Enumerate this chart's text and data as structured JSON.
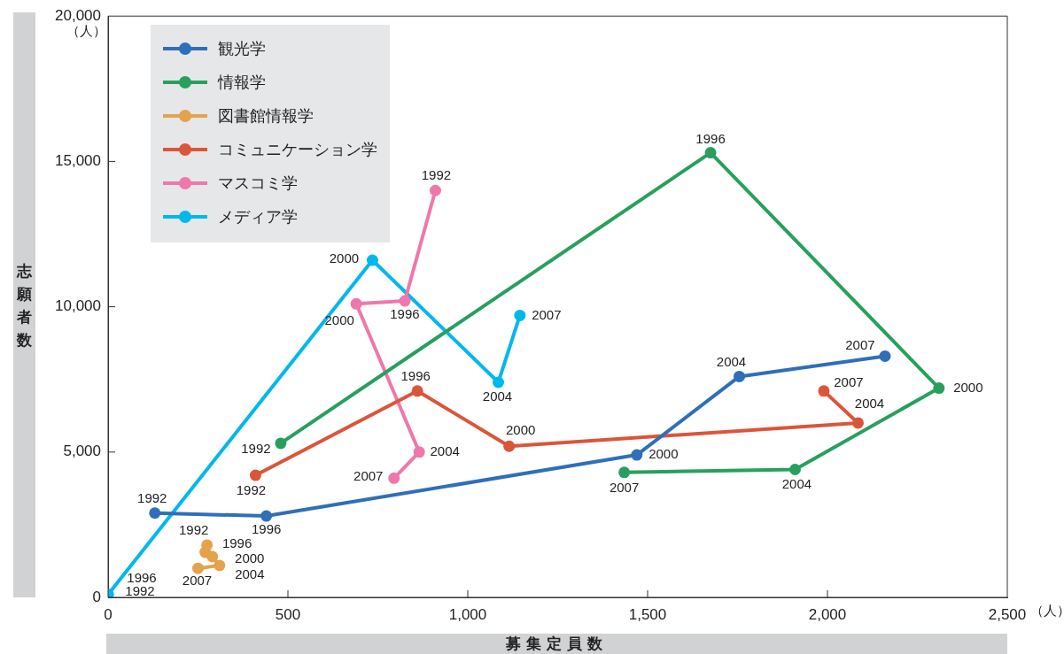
{
  "chart_data": {
    "type": "line",
    "xlabel": "募集定員数",
    "ylabel": "志願者数",
    "marker": "circle",
    "line_style": "solid",
    "legend": "top left",
    "xlim": [
      0,
      2500
    ],
    "ylim": [
      0,
      20000
    ],
    "xticks": [
      0,
      500,
      {
        "value": 1000,
        "label": "1,000"
      },
      {
        "value": 1500,
        "label": "1,500"
      },
      {
        "value": 2000,
        "label": "2,000"
      },
      {
        "value": 2500,
        "label": "2,500"
      }
    ],
    "yticks": [
      0,
      {
        "value": 5000,
        "label": "5,000"
      },
      {
        "value": 10000,
        "label": "10,000"
      },
      {
        "value": 15000,
        "label": "15,000"
      },
      {
        "value": 20000,
        "label": "20,000"
      }
    ],
    "series": [
      {
        "name": "観光学",
        "color": "#2f6fb9",
        "x": [
          130,
          440,
          1470,
          1755,
          2160
        ],
        "values": [
          2900,
          2800,
          4900,
          7600,
          8300
        ]
      },
      {
        "name": "情報学",
        "color": "#27a05e",
        "x": [
          480,
          1675,
          2310,
          1910,
          1435
        ],
        "values": [
          5300,
          15300,
          7200,
          4400,
          4300
        ]
      },
      {
        "name": "図書館情報学",
        "color": "#e5a24c",
        "x": [
          275,
          270,
          290,
          310,
          250
        ],
        "values": [
          1800,
          1550,
          1400,
          1100,
          1000
        ]
      },
      {
        "name": "コミュニケーション学",
        "color": "#db5539",
        "x": [
          410,
          860,
          1115,
          2085,
          1990
        ],
        "values": [
          4200,
          7100,
          5200,
          6000,
          7100
        ]
      },
      {
        "name": "マスコミ学",
        "color": "#ee78ab",
        "x": [
          910,
          825,
          690,
          865,
          795
        ],
        "values": [
          14000,
          10200,
          10100,
          5000,
          4100
        ]
      },
      {
        "name": "メディア学",
        "color": "#00b8ec",
        "x": [
          0,
          0,
          735,
          1085,
          1145
        ],
        "values": [
          100,
          100,
          11600,
          7400,
          9700
        ]
      }
    ],
    "annotations": [
      "（人）",
      "（人）",
      {
        "text": "1992",
        "x": 130,
        "y": 2900
      },
      {
        "text": "1996",
        "x": 440,
        "y": 2800
      },
      {
        "text": "2000",
        "x": 1470,
        "y": 4900
      },
      {
        "text": "2004",
        "x": 1755,
        "y": 7600
      },
      {
        "text": "2007",
        "x": 2160,
        "y": 8300
      },
      {
        "text": "1992",
        "x": 480,
        "y": 5300
      },
      {
        "text": "1996",
        "x": 1675,
        "y": 15300
      },
      {
        "text": "2000",
        "x": 2310,
        "y": 7200
      },
      {
        "text": "2004",
        "x": 1910,
        "y": 4400
      },
      {
        "text": "2007",
        "x": 1435,
        "y": 4300
      },
      {
        "text": "1992",
        "x": 275,
        "y": 1800
      },
      {
        "text": "1996",
        "x": 270,
        "y": 1550
      },
      {
        "text": "2000",
        "x": 290,
        "y": 1400
      },
      {
        "text": "2004",
        "x": 310,
        "y": 1100
      },
      {
        "text": "2007",
        "x": 250,
        "y": 1000
      },
      {
        "text": "1992",
        "x": 410,
        "y": 4200
      },
      {
        "text": "1996",
        "x": 860,
        "y": 7100
      },
      {
        "text": "2000",
        "x": 1115,
        "y": 5200
      },
      {
        "text": "2004",
        "x": 2085,
        "y": 6000
      },
      {
        "text": "2007",
        "x": 1990,
        "y": 7100
      },
      {
        "text": "1992",
        "x": 910,
        "y": 14000
      },
      {
        "text": "1996",
        "x": 825,
        "y": 10200
      },
      {
        "text": "2000",
        "x": 690,
        "y": 10100
      },
      {
        "text": "2004",
        "x": 865,
        "y": 5000
      },
      {
        "text": "2007",
        "x": 795,
        "y": 4100
      },
      {
        "text": "1992",
        "x": 0,
        "y": 100
      },
      {
        "text": "1996",
        "x": 0,
        "y": 100
      },
      {
        "text": "2000",
        "x": 735,
        "y": 11600
      },
      {
        "text": "2004",
        "x": 1085,
        "y": 7400
      },
      {
        "text": "2007",
        "x": 1145,
        "y": 9700
      }
    ]
  }
}
